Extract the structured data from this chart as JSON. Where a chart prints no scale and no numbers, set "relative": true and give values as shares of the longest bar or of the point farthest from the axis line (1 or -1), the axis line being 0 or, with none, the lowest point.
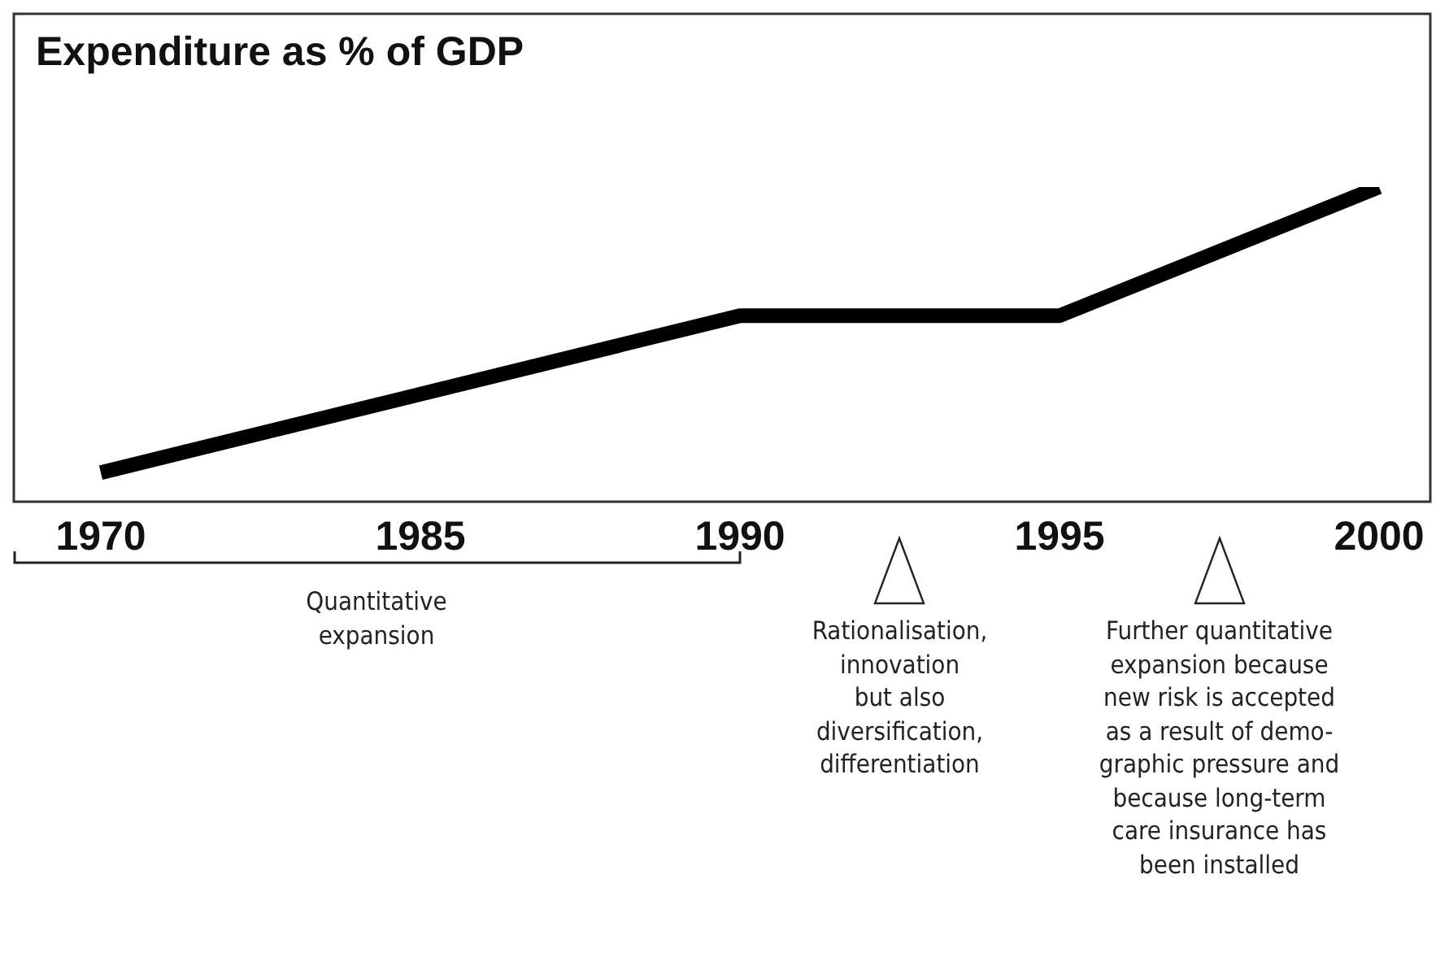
{
  "chart_data": {
    "type": "line",
    "title": "Expenditure as % of GDP",
    "relative": true,
    "categories": [
      "1970",
      "1985",
      "1990",
      "1995",
      "2000"
    ],
    "series": [
      {
        "color": "#000000",
        "values": [
          0.09,
          0.34,
          0.59,
          0.59,
          1
        ]
      }
    ],
    "grid": false,
    "legend": false,
    "marker": "none",
    "line_style": "solid",
    "tick_labels": "x",
    "annotations": [
      "Quantitative\nexpansion",
      "Rationalisation,\ninnovation\nbut also\ndiversification,\ndifferentiation",
      "Further quantitative\nexpansion because\nnew risk is accepted\nas a result of demo-\ngraphic pressure and\nbecause long-term\ncare insurance has\nbeen installed"
    ]
  }
}
